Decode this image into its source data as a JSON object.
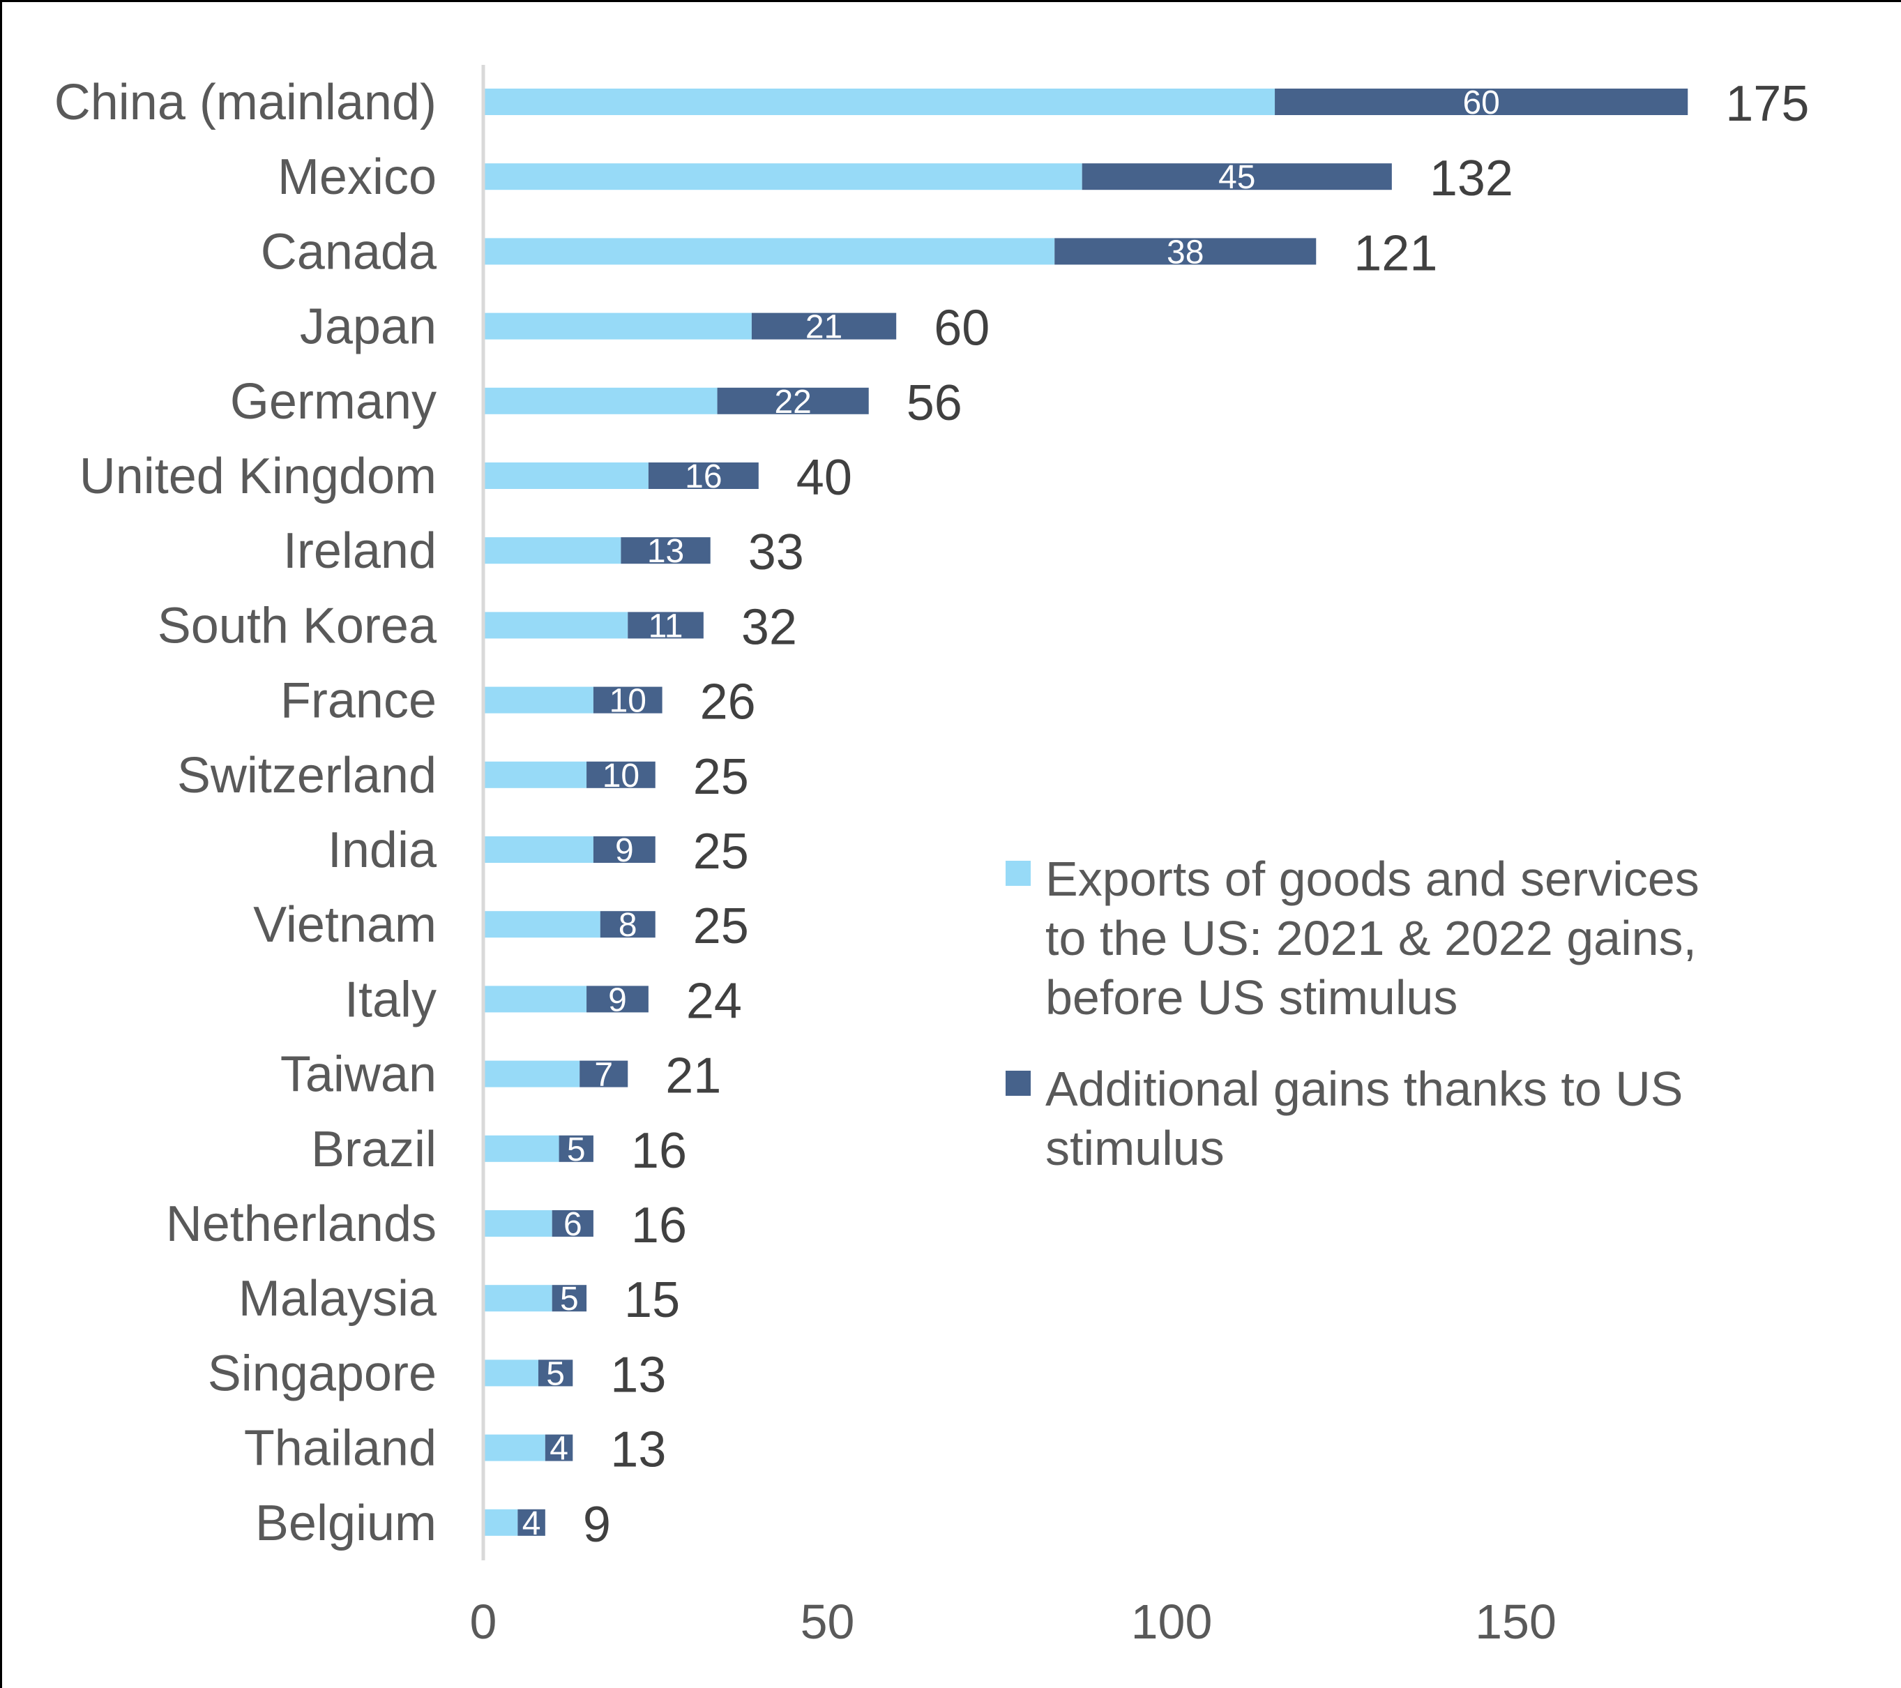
{
  "chart_data": {
    "type": "bar",
    "orientation": "horizontal",
    "stacked": true,
    "title": "",
    "xlabel": "",
    "ylabel": "",
    "xlim": [
      0,
      190
    ],
    "x_ticks": [
      0,
      50,
      100,
      150
    ],
    "grid": false,
    "legend_position": "right",
    "categories": [
      "China (mainland)",
      "Mexico",
      "Canada",
      "Japan",
      "Germany",
      "United Kingdom",
      "Ireland",
      "South Korea",
      "France",
      "Switzerland",
      "India",
      "Vietnam",
      "Italy",
      "Taiwan",
      "Brazil",
      "Netherlands",
      "Malaysia",
      "Singapore",
      "Thailand",
      "Belgium"
    ],
    "series": [
      {
        "name": "Exports of goods and services to the US: 2021 & 2022 gains, before US stimulus",
        "color": "#97DAF7",
        "values": [
          115,
          87,
          83,
          39,
          34,
          24,
          20,
          21,
          16,
          15,
          16,
          17,
          15,
          14,
          11,
          10,
          10,
          8,
          9,
          5
        ]
      },
      {
        "name": "Additional gains thanks to US stimulus",
        "color": "#46628B",
        "values": [
          60,
          45,
          38,
          21,
          22,
          16,
          13,
          11,
          10,
          10,
          9,
          8,
          9,
          7,
          5,
          6,
          5,
          5,
          4,
          4
        ]
      }
    ],
    "totals": [
      175,
      132,
      121,
      60,
      56,
      40,
      33,
      32,
      26,
      25,
      25,
      25,
      24,
      21,
      16,
      16,
      15,
      13,
      13,
      9
    ]
  },
  "legend": {
    "items": [
      {
        "lines": [
          "Exports of goods and services",
          "to the US: 2021 & 2022 gains,",
          "before US stimulus"
        ],
        "color": "#97DAF7"
      },
      {
        "lines": [
          "Additional gains thanks to US",
          "stimulus"
        ],
        "color": "#46628B"
      }
    ]
  }
}
